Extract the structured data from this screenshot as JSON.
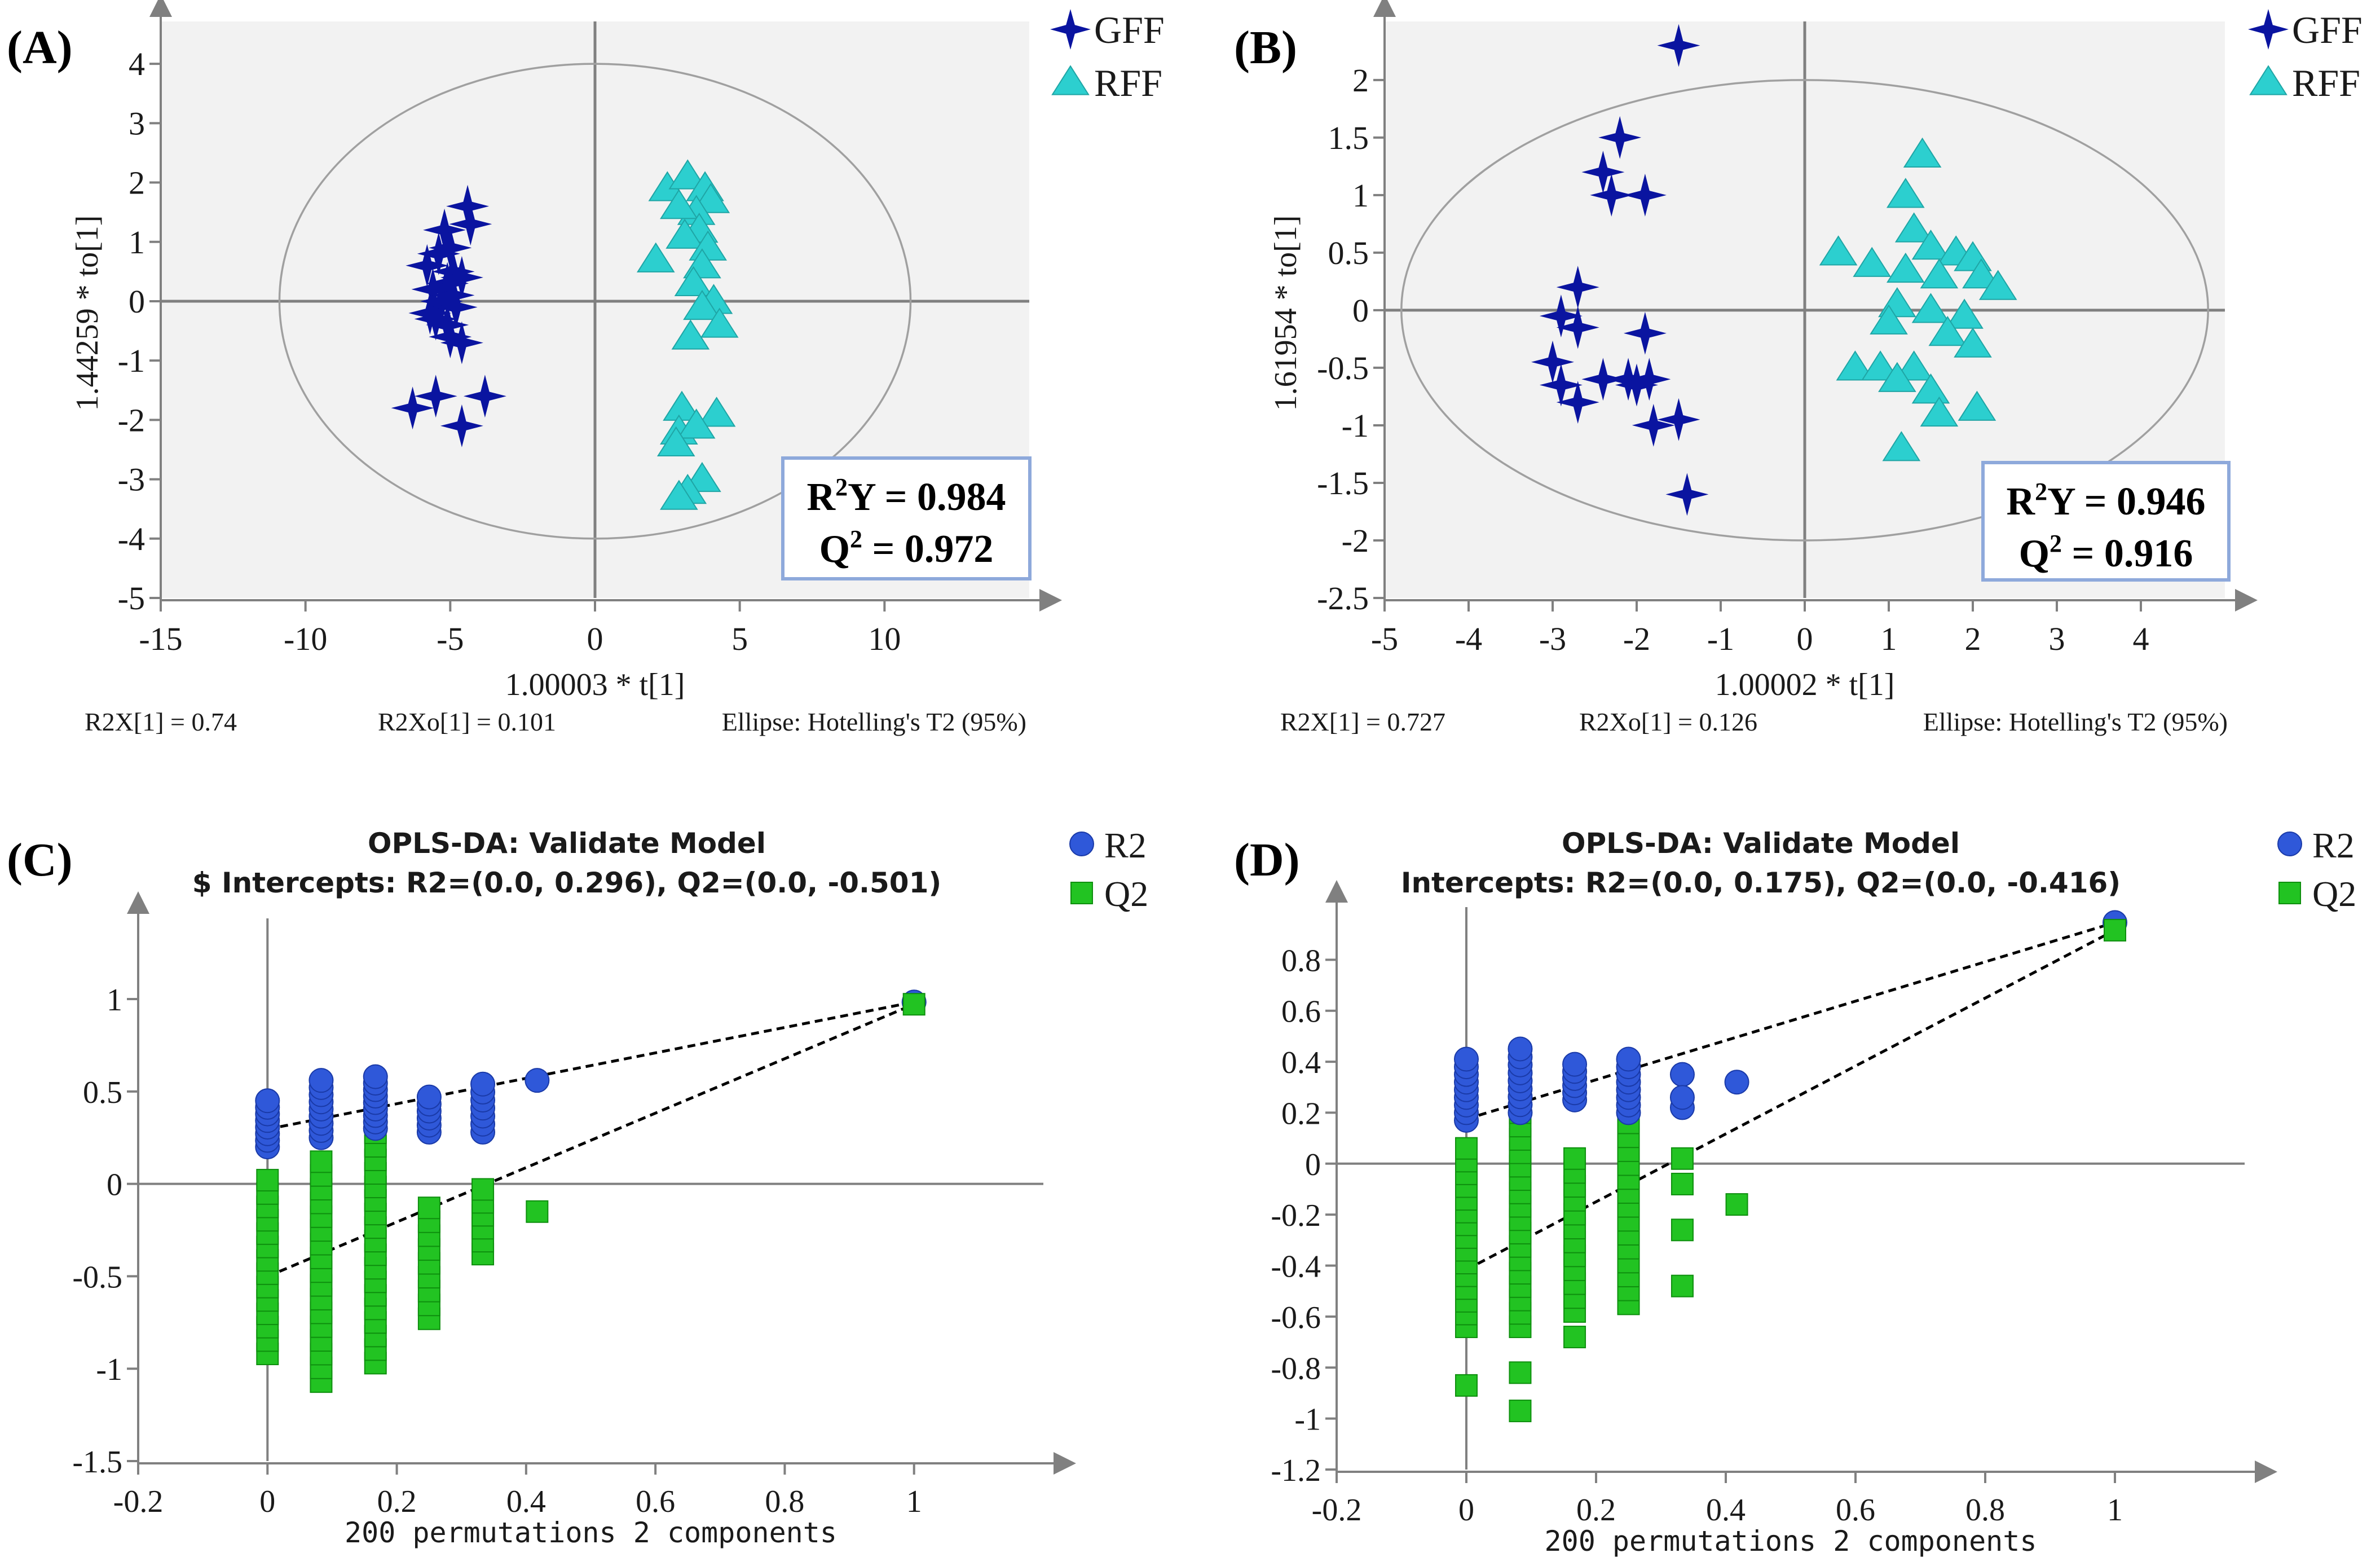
{
  "chart_data": [
    {
      "panel": "(A)",
      "type": "scatter",
      "xlabel": "1.00003 * t[1]",
      "ylabel": "1.44259 * to[1]",
      "xlim": [
        -15,
        15
      ],
      "ylim": [
        -5,
        4.6
      ],
      "xticks": [
        "-15",
        "-10",
        "-5",
        "0",
        "5",
        "10"
      ],
      "yticks": [
        "-5",
        "-4",
        "-3",
        "-2",
        "-1",
        "0",
        "1",
        "2",
        "3",
        "4"
      ],
      "ellipse": {
        "cx": 0,
        "cy": 0,
        "rx": 10.9,
        "ry": 4.0
      },
      "footer": {
        "left": "R2X[1] = 0.74",
        "mid": "R2Xo[1] = 0.101",
        "right": "Ellipse: Hotelling's T2 (95%)"
      },
      "stats": {
        "r2y_base": "R",
        "r2y_sup": "2",
        "r2y_rest": "Y = 0.984",
        "q2_base": "Q",
        "q2_sup": "2",
        "q2_rest": " = 0.972"
      },
      "legend": [
        "GFF",
        "RFF"
      ],
      "series": [
        {
          "name": "GFF",
          "marker": "star",
          "color": "#0a14a0",
          "points": [
            [
              -4.4,
              1.6
            ],
            [
              -4.3,
              1.3
            ],
            [
              -5.2,
              1.2
            ],
            [
              -5.0,
              0.9
            ],
            [
              -5.4,
              0.8
            ],
            [
              -5.8,
              0.6
            ],
            [
              -4.9,
              0.5
            ],
            [
              -5.1,
              0.3
            ],
            [
              -5.6,
              0.2
            ],
            [
              -4.6,
              0.4
            ],
            [
              -5.3,
              0.0
            ],
            [
              -4.8,
              -0.1
            ],
            [
              -5.7,
              -0.2
            ],
            [
              -5.1,
              -0.4
            ],
            [
              -4.6,
              -0.7
            ],
            [
              -5.0,
              -0.6
            ],
            [
              -5.5,
              -0.3
            ],
            [
              -4.9,
              0.1
            ],
            [
              -6.3,
              -1.8
            ],
            [
              -5.5,
              -1.6
            ],
            [
              -3.8,
              -1.6
            ],
            [
              -4.6,
              -2.1
            ]
          ]
        },
        {
          "name": "RFF",
          "marker": "triangle",
          "color": "#2ccfcf",
          "points": [
            [
              2.5,
              1.9
            ],
            [
              3.2,
              2.1
            ],
            [
              3.8,
              1.9
            ],
            [
              4.0,
              1.7
            ],
            [
              3.5,
              1.5
            ],
            [
              2.9,
              1.6
            ],
            [
              3.6,
              1.2
            ],
            [
              3.1,
              1.1
            ],
            [
              3.9,
              0.9
            ],
            [
              3.7,
              0.6
            ],
            [
              2.1,
              0.7
            ],
            [
              3.4,
              0.3
            ],
            [
              4.1,
              0.0
            ],
            [
              3.7,
              -0.1
            ],
            [
              4.3,
              -0.4
            ],
            [
              3.3,
              -0.6
            ],
            [
              3.0,
              -1.8
            ],
            [
              4.2,
              -1.9
            ],
            [
              2.9,
              -2.2
            ],
            [
              3.5,
              -2.1
            ],
            [
              2.8,
              -2.4
            ],
            [
              3.7,
              -3.0
            ],
            [
              3.2,
              -3.2
            ],
            [
              2.9,
              -3.3
            ]
          ]
        }
      ]
    },
    {
      "panel": "(B)",
      "type": "scatter",
      "xlabel": "1.00002 * t[1]",
      "ylabel": "1.61954 * to[1]",
      "xlim": [
        -5,
        5
      ],
      "ylim": [
        -2.5,
        2.45
      ],
      "xticks": [
        "-5",
        "-4",
        "-3",
        "-2",
        "-1",
        "0",
        "1",
        "2",
        "3",
        "4"
      ],
      "yticks": [
        "-2.5",
        "-2",
        "-1.5",
        "-1",
        "-0.5",
        "0",
        "0.5",
        "1",
        "1.5",
        "2"
      ],
      "ellipse": {
        "cx": 0,
        "cy": 0,
        "rx": 4.8,
        "ry": 2.0
      },
      "footer": {
        "left": "R2X[1] = 0.727",
        "mid": "R2Xo[1] = 0.126",
        "right": "Ellipse: Hotelling's T2 (95%)"
      },
      "stats": {
        "r2y_base": "R",
        "r2y_sup": "2",
        "r2y_rest": "Y = 0.946",
        "q2_base": "Q",
        "q2_sup": "2",
        "q2_rest": " = 0.916"
      },
      "legend": [
        "GFF",
        "RFF"
      ],
      "series": [
        {
          "name": "GFF",
          "marker": "star",
          "color": "#0a14a0",
          "points": [
            [
              -1.5,
              2.3
            ],
            [
              -2.2,
              1.5
            ],
            [
              -2.4,
              1.2
            ],
            [
              -2.3,
              1.0
            ],
            [
              -1.9,
              1.0
            ],
            [
              -2.7,
              0.2
            ],
            [
              -2.9,
              -0.05
            ],
            [
              -2.7,
              -0.15
            ],
            [
              -1.9,
              -0.2
            ],
            [
              -3.0,
              -0.45
            ],
            [
              -2.4,
              -0.6
            ],
            [
              -2.1,
              -0.6
            ],
            [
              -1.85,
              -0.6
            ],
            [
              -2.0,
              -0.65
            ],
            [
              -2.9,
              -0.65
            ],
            [
              -2.7,
              -0.8
            ],
            [
              -1.5,
              -0.95
            ],
            [
              -1.8,
              -1.0
            ],
            [
              -1.4,
              -1.6
            ]
          ]
        },
        {
          "name": "RFF",
          "marker": "triangle",
          "color": "#2ccfcf",
          "points": [
            [
              1.4,
              1.35
            ],
            [
              1.2,
              1.0
            ],
            [
              1.3,
              0.7
            ],
            [
              1.5,
              0.55
            ],
            [
              1.8,
              0.5
            ],
            [
              2.0,
              0.45
            ],
            [
              0.4,
              0.5
            ],
            [
              0.8,
              0.4
            ],
            [
              1.2,
              0.35
            ],
            [
              1.6,
              0.3
            ],
            [
              2.1,
              0.3
            ],
            [
              2.3,
              0.2
            ],
            [
              1.1,
              0.05
            ],
            [
              1.5,
              0.0
            ],
            [
              1.9,
              -0.05
            ],
            [
              1.0,
              -0.1
            ],
            [
              1.7,
              -0.2
            ],
            [
              2.0,
              -0.3
            ],
            [
              0.6,
              -0.5
            ],
            [
              0.9,
              -0.5
            ],
            [
              1.3,
              -0.5
            ],
            [
              1.1,
              -0.6
            ],
            [
              1.5,
              -0.7
            ],
            [
              1.6,
              -0.9
            ],
            [
              2.05,
              -0.85
            ],
            [
              1.15,
              -1.2
            ]
          ]
        }
      ]
    },
    {
      "panel": "(C)",
      "type": "scatter",
      "title": "OPLS-DA: Validate Model",
      "subtitle": "$ Intercepts: R2=(0.0, 0.296), Q2=(0.0, -0.501)",
      "xlabel": "200 permutations 2 components",
      "ylabel": "",
      "xlim": [
        -0.2,
        1.2
      ],
      "ylim": [
        -1.5,
        1.4
      ],
      "xticks": [
        "-0.2",
        "0",
        "0.2",
        "0.4",
        "0.6",
        "0.8",
        "1"
      ],
      "yticks": [
        "-1.5",
        "-1",
        "-0.5",
        "0",
        "0.5",
        "1"
      ],
      "legend": [
        "R2",
        "Q2"
      ],
      "r2_line": [
        [
          0,
          0.296
        ],
        [
          1,
          0.984
        ]
      ],
      "q2_line": [
        [
          0,
          -0.501
        ],
        [
          1,
          0.972
        ]
      ],
      "r2_original": [
        1,
        0.984
      ],
      "q2_original": [
        1,
        0.972
      ],
      "r2_columns": [
        {
          "x": 0,
          "from": 0.2,
          "to": 0.45,
          "n": 8
        },
        {
          "x": 0.083,
          "from": 0.25,
          "to": 0.56,
          "n": 9
        },
        {
          "x": 0.167,
          "from": 0.3,
          "to": 0.58,
          "n": 9
        },
        {
          "x": 0.25,
          "from": 0.28,
          "to": 0.47,
          "n": 6
        },
        {
          "x": 0.333,
          "from": 0.28,
          "to": 0.54,
          "n": 7
        }
      ],
      "r2_extra": [
        [
          0.417,
          0.56
        ]
      ],
      "q2_columns": [
        {
          "x": 0,
          "from": -0.92,
          "to": 0.02,
          "n": 14
        },
        {
          "x": 0.083,
          "from": -1.07,
          "to": 0.12,
          "n": 17
        },
        {
          "x": 0.167,
          "from": -0.97,
          "to": 0.35,
          "n": 19
        },
        {
          "x": 0.25,
          "from": -0.73,
          "to": -0.13,
          "n": 9
        },
        {
          "x": 0.333,
          "from": -0.38,
          "to": -0.03,
          "n": 6
        }
      ],
      "q2_extra": [
        [
          0.417,
          -0.15
        ]
      ]
    },
    {
      "panel": "(D)",
      "type": "scatter",
      "title": "OPLS-DA: Validate Model",
      "subtitle": "Intercepts: R2=(0.0, 0.175), Q2=(0.0, -0.416)",
      "xlabel": "200 permutations 2 components",
      "ylabel": "",
      "xlim": [
        -0.2,
        1.2
      ],
      "ylim": [
        -1.2,
        0.98
      ],
      "xticks": [
        "-0.2",
        "0",
        "0.2",
        "0.4",
        "0.6",
        "0.8",
        "1"
      ],
      "yticks": [
        "-1.2",
        "-1",
        "-0.8",
        "-0.6",
        "-0.4",
        "-0.2",
        "0",
        "0.2",
        "0.4",
        "0.6",
        "0.8"
      ],
      "legend": [
        "R2",
        "Q2"
      ],
      "r2_line": [
        [
          0,
          0.175
        ],
        [
          1,
          0.946
        ]
      ],
      "q2_line": [
        [
          0,
          -0.416
        ],
        [
          1,
          0.916
        ]
      ],
      "r2_original": [
        1,
        0.946
      ],
      "q2_original": [
        1,
        0.916
      ],
      "r2_columns": [
        {
          "x": 0,
          "from": 0.17,
          "to": 0.41,
          "n": 9
        },
        {
          "x": 0.083,
          "from": 0.2,
          "to": 0.45,
          "n": 9
        },
        {
          "x": 0.167,
          "from": 0.25,
          "to": 0.39,
          "n": 6
        },
        {
          "x": 0.25,
          "from": 0.2,
          "to": 0.41,
          "n": 8
        }
      ],
      "r2_extra": [
        [
          0.333,
          0.35
        ],
        [
          0.333,
          0.22
        ],
        [
          0.333,
          0.26
        ],
        [
          0.417,
          0.32
        ]
      ],
      "q2_columns": [
        {
          "x": 0,
          "from": -0.64,
          "to": 0.06,
          "n": 15
        },
        {
          "x": 0.083,
          "from": -0.64,
          "to": 0.2,
          "n": 17
        },
        {
          "x": 0.167,
          "from": -0.58,
          "to": 0.02,
          "n": 12
        },
        {
          "x": 0.25,
          "from": -0.55,
          "to": 0.16,
          "n": 14
        }
      ],
      "q2_extra": [
        [
          0,
          -0.87
        ],
        [
          0.083,
          -0.82
        ],
        [
          0.083,
          -0.97
        ],
        [
          0.167,
          -0.68
        ],
        [
          0.333,
          0.02
        ],
        [
          0.333,
          -0.08
        ],
        [
          0.333,
          -0.26
        ],
        [
          0.333,
          -0.48
        ],
        [
          0.417,
          -0.16
        ]
      ]
    }
  ]
}
